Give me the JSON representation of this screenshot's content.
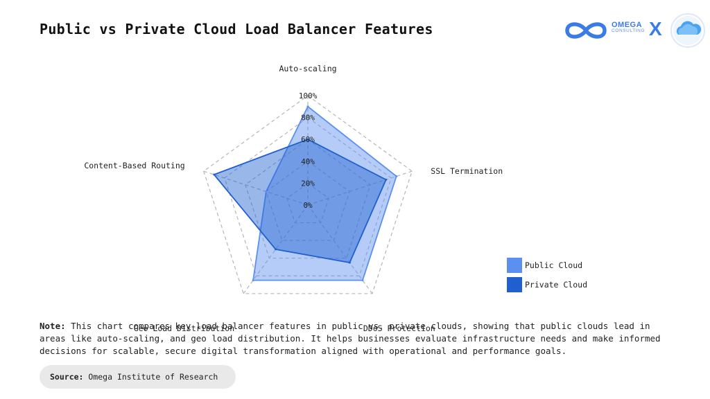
{
  "title": "Public vs Private Cloud Load Balancer Features",
  "logo": {
    "brand_line1": "OMEGA",
    "brand_line2": "CONSULTING",
    "separator": "X",
    "brand_icon": "infinity-icon",
    "partner_icon": "cloud-icon"
  },
  "chart_data": {
    "type": "radar",
    "axes": [
      "Auto-scaling",
      "SSL Termination",
      "DDoS Protection",
      "Geo Load Distribution",
      "Content-Based Routing"
    ],
    "ticks": [
      "0%",
      "20%",
      "40%",
      "60%",
      "80%",
      "100%"
    ],
    "range": [
      0,
      100
    ],
    "series": [
      {
        "name": "Public Cloud",
        "values": [
          90,
          85,
          85,
          85,
          40
        ],
        "color": "#5b8ff0"
      },
      {
        "name": "Private Cloud",
        "values": [
          60,
          75,
          65,
          50,
          90
        ],
        "color": "#1f5fcf"
      }
    ],
    "legend_position": "right",
    "grid": true
  },
  "note": {
    "label": "Note:",
    "text": "This chart compares key load balancer features in public vs. private clouds, showing that public clouds lead in areas like auto-scaling, and geo load distribution. It helps businesses evaluate infrastructure needs and make informed decisions for scalable, secure digital transformation aligned with operational and performance goals."
  },
  "source": {
    "label": "Source:",
    "text": "Omega Institute of Research"
  }
}
